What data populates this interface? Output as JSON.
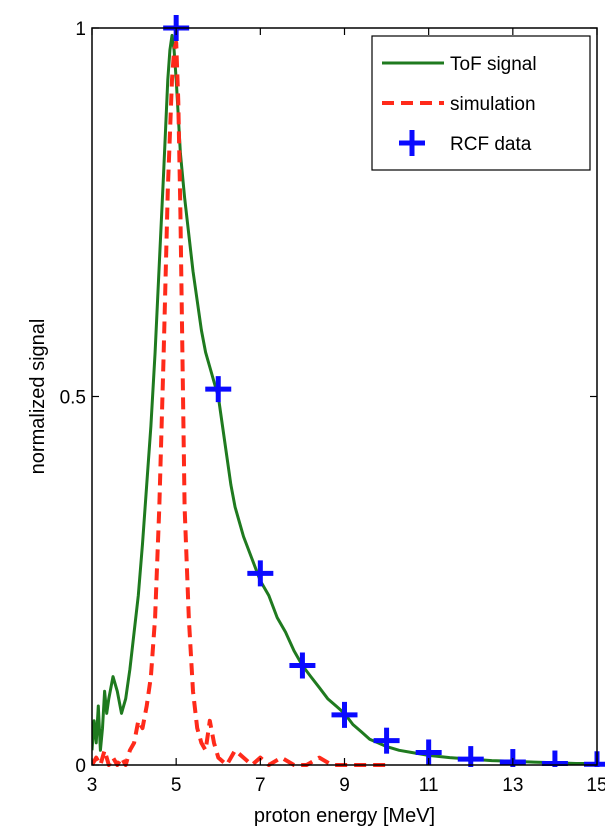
{
  "chart_data": {
    "type": "line",
    "xlabel": "proton energy [MeV]",
    "ylabel": "normalized signal",
    "xlim": [
      3,
      15
    ],
    "ylim": [
      0,
      1
    ],
    "xticks": [
      3,
      5,
      7,
      9,
      11,
      13,
      15
    ],
    "yticks": [
      0,
      0.5,
      1
    ],
    "yticklabels": [
      "0",
      "0.5",
      "1"
    ],
    "grid": false,
    "legend_position": "top-right",
    "series": [
      {
        "name": "ToF signal",
        "style": "solid",
        "color": "#1f7a1f",
        "x": [
          3.0,
          3.05,
          3.1,
          3.15,
          3.2,
          3.25,
          3.3,
          3.35,
          3.4,
          3.5,
          3.6,
          3.7,
          3.8,
          3.9,
          4.0,
          4.1,
          4.2,
          4.3,
          4.4,
          4.5,
          4.6,
          4.7,
          4.8,
          4.85,
          4.9,
          4.95,
          5.0,
          5.05,
          5.1,
          5.2,
          5.3,
          5.4,
          5.5,
          5.6,
          5.7,
          5.8,
          5.9,
          6.0,
          6.1,
          6.2,
          6.3,
          6.4,
          6.5,
          6.6,
          6.8,
          7.0,
          7.2,
          7.4,
          7.6,
          7.8,
          8.0,
          8.2,
          8.4,
          8.6,
          8.8,
          9.0,
          9.2,
          9.4,
          9.6,
          9.8,
          10.0,
          10.3,
          10.6,
          11.0,
          11.5,
          12.0,
          12.5,
          13.0,
          13.5,
          14.0,
          14.5,
          15.0
        ],
        "y": [
          0.02,
          0.06,
          0.03,
          0.08,
          0.02,
          0.05,
          0.1,
          0.07,
          0.09,
          0.12,
          0.1,
          0.07,
          0.09,
          0.13,
          0.18,
          0.23,
          0.3,
          0.38,
          0.46,
          0.56,
          0.68,
          0.8,
          0.93,
          0.97,
          0.99,
          0.97,
          0.93,
          0.88,
          0.83,
          0.77,
          0.72,
          0.67,
          0.63,
          0.59,
          0.56,
          0.54,
          0.52,
          0.5,
          0.46,
          0.42,
          0.38,
          0.35,
          0.33,
          0.31,
          0.28,
          0.25,
          0.23,
          0.2,
          0.18,
          0.155,
          0.135,
          0.12,
          0.105,
          0.09,
          0.08,
          0.07,
          0.055,
          0.045,
          0.035,
          0.03,
          0.025,
          0.02,
          0.017,
          0.013,
          0.01,
          0.008,
          0.006,
          0.005,
          0.004,
          0.003,
          0.002,
          0.002
        ]
      },
      {
        "name": "simulation",
        "style": "dashed",
        "color": "#ff2a1a",
        "x": [
          3.0,
          3.1,
          3.2,
          3.3,
          3.4,
          3.5,
          3.6,
          3.7,
          3.8,
          3.9,
          4.0,
          4.1,
          4.2,
          4.3,
          4.4,
          4.5,
          4.6,
          4.7,
          4.8,
          4.9,
          4.95,
          5.0,
          5.05,
          5.1,
          5.15,
          5.2,
          5.3,
          5.4,
          5.5,
          5.6,
          5.7,
          5.8,
          5.9,
          6.0,
          6.2,
          6.4,
          6.6,
          6.8,
          7.0,
          7.2,
          7.5,
          7.8,
          8.1,
          8.4,
          8.7,
          9.0,
          9.5,
          10.0
        ],
        "y": [
          0.0,
          0.01,
          0.0,
          0.02,
          0.0,
          0.01,
          0.0,
          0.01,
          0.0,
          0.02,
          0.03,
          0.06,
          0.05,
          0.08,
          0.12,
          0.2,
          0.35,
          0.55,
          0.78,
          0.93,
          0.97,
          0.98,
          0.9,
          0.75,
          0.55,
          0.35,
          0.2,
          0.1,
          0.05,
          0.03,
          0.02,
          0.06,
          0.03,
          0.01,
          0.0,
          0.02,
          0.01,
          0.0,
          0.01,
          0.0,
          0.01,
          0.0,
          0.0,
          0.01,
          0.0,
          0.0,
          0.0,
          0.0
        ]
      },
      {
        "name": "RCF data",
        "style": "markers",
        "color": "#0a0aff",
        "x": [
          5,
          6,
          7,
          8,
          9,
          10,
          11,
          12,
          13,
          14,
          15
        ],
        "y": [
          1.0,
          0.51,
          0.26,
          0.135,
          0.068,
          0.033,
          0.017,
          0.008,
          0.004,
          0.002,
          0.001
        ]
      }
    ]
  }
}
